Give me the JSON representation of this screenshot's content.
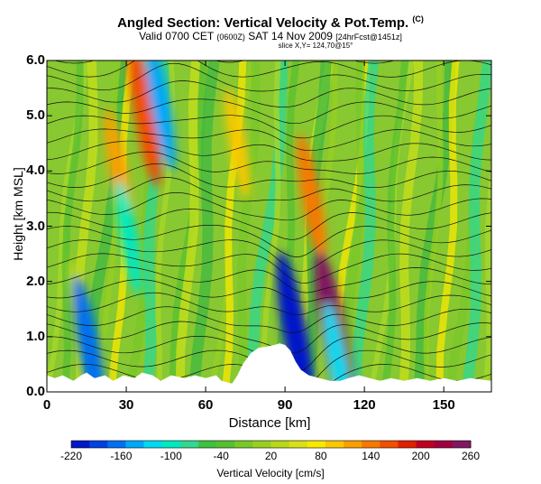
{
  "chart_data": {
    "type": "heatmap",
    "title": "Angled Section: Vertical Velocity & Pot.Temp.",
    "title_mark": "(C)",
    "subtitle_main": "Valid 0700 CET",
    "subtitle_utc": "(0600Z)",
    "subtitle_date": "SAT 14 Nov 2009",
    "subtitle_fcst": "[24hrFcst@1451z]",
    "slice_info": "slice X,Y= 124,70@15°",
    "xlabel": "Distance [km]",
    "ylabel": "Height [km MSL]",
    "xlim": [
      0,
      168
    ],
    "ylim": [
      0,
      6
    ],
    "xticks": [
      "0",
      "30",
      "60",
      "90",
      "120",
      "150"
    ],
    "xtick_values": [
      0,
      30,
      60,
      90,
      120,
      150
    ],
    "yticks": [
      "0.0",
      "1.0",
      "2.0",
      "3.0",
      "4.0",
      "5.0",
      "6.0"
    ],
    "ytick_values": [
      0,
      1,
      2,
      3,
      4,
      5,
      6
    ],
    "colorbar": {
      "label": "Vertical Velocity [cm/s]",
      "ticks": [
        "-220",
        "-160",
        "-100",
        "-40",
        "20",
        "80",
        "140",
        "200",
        "260"
      ],
      "min": -220,
      "max": 260,
      "colors": [
        "#0018c8",
        "#0040e0",
        "#0070f0",
        "#00a8f8",
        "#00d8f0",
        "#00e8c0",
        "#30d890",
        "#40c040",
        "#58c030",
        "#78c828",
        "#98d020",
        "#b8d818",
        "#d8e018",
        "#f8e800",
        "#f8c800",
        "#f8a000",
        "#f87800",
        "#f05000",
        "#e02000",
        "#c00020",
        "#a00040",
        "#801860"
      ]
    },
    "terrain_km": [
      [
        0,
        0.3
      ],
      [
        3,
        0.25
      ],
      [
        6,
        0.3
      ],
      [
        10,
        0.2
      ],
      [
        13,
        0.3
      ],
      [
        15,
        0.35
      ],
      [
        18,
        0.25
      ],
      [
        22,
        0.3
      ],
      [
        25,
        0.2
      ],
      [
        29,
        0.3
      ],
      [
        33,
        0.25
      ],
      [
        36,
        0.35
      ],
      [
        40,
        0.3
      ],
      [
        43,
        0.2
      ],
      [
        47,
        0.3
      ],
      [
        52,
        0.25
      ],
      [
        56,
        0.3
      ],
      [
        60,
        0.25
      ],
      [
        64,
        0.3
      ],
      [
        66,
        0.2
      ],
      [
        70,
        0.15
      ],
      [
        72,
        0.3
      ],
      [
        74,
        0.5
      ],
      [
        77,
        0.7
      ],
      [
        80,
        0.8
      ],
      [
        83,
        0.82
      ],
      [
        86,
        0.85
      ],
      [
        88,
        0.88
      ],
      [
        90,
        0.85
      ],
      [
        92,
        0.75
      ],
      [
        94,
        0.55
      ],
      [
        96,
        0.4
      ],
      [
        99,
        0.3
      ],
      [
        103,
        0.25
      ],
      [
        107,
        0.2
      ],
      [
        111,
        0.2
      ],
      [
        114,
        0.25
      ],
      [
        118,
        0.3
      ],
      [
        122,
        0.25
      ],
      [
        126,
        0.2
      ],
      [
        130,
        0.25
      ],
      [
        135,
        0.2
      ],
      [
        140,
        0.25
      ],
      [
        145,
        0.2
      ],
      [
        150,
        0.25
      ],
      [
        155,
        0.2
      ],
      [
        160,
        0.25
      ],
      [
        168,
        0.2
      ]
    ],
    "updraft_cores_cm_s": [
      {
        "x_km": 12,
        "z_km": 1.6,
        "value": 40
      },
      {
        "x_km": 27,
        "z_km": 4.0,
        "value": 120
      },
      {
        "x_km": 37,
        "z_km": 5.0,
        "value": 160
      },
      {
        "x_km": 72,
        "z_km": 4.5,
        "value": 90
      },
      {
        "x_km": 100,
        "z_km": 3.5,
        "value": 130
      },
      {
        "x_km": 109,
        "z_km": 0.9,
        "value": 250
      }
    ],
    "downdraft_cores_cm_s": [
      {
        "x_km": 16,
        "z_km": 0.8,
        "value": -160
      },
      {
        "x_km": 31,
        "z_km": 2.8,
        "value": -100
      },
      {
        "x_km": 43,
        "z_km": 5.2,
        "value": -140
      },
      {
        "x_km": 94,
        "z_km": 1.0,
        "value": -220
      },
      {
        "x_km": 110,
        "z_km": 0.5,
        "value": -120
      }
    ],
    "isentrope_count": 24
  }
}
